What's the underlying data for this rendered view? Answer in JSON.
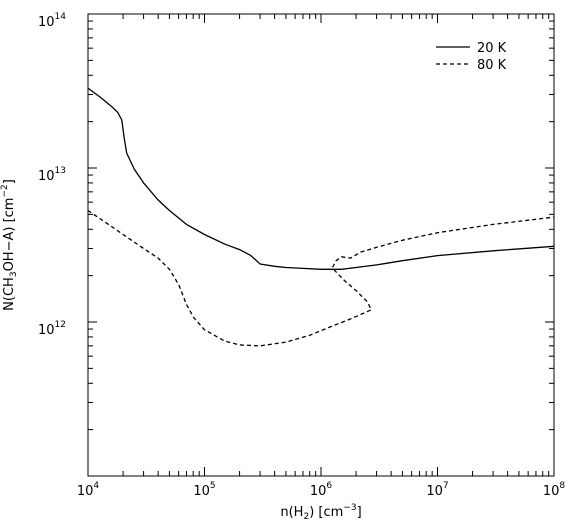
{
  "chart_data": {
    "type": "line",
    "title": "",
    "xlabel": "n(H2) [cm-3]",
    "ylabel": "N(CH3OH-A) [cm-2]",
    "xscale": "log",
    "yscale": "log",
    "xlim": [
      10000,
      100000000
    ],
    "ylim": [
      100000000000,
      100000000000000
    ],
    "legend_position": "top-right",
    "x_ticks": [
      {
        "value": 10000,
        "base": "10",
        "exp": "4"
      },
      {
        "value": 100000,
        "base": "10",
        "exp": "5"
      },
      {
        "value": 1000000,
        "base": "10",
        "exp": "6"
      },
      {
        "value": 10000000,
        "base": "10",
        "exp": "7"
      },
      {
        "value": 100000000,
        "base": "10",
        "exp": "8"
      }
    ],
    "y_ticks": [
      {
        "value": 1000000000000,
        "base": "10",
        "exp": "12"
      },
      {
        "value": 10000000000000,
        "base": "10",
        "exp": "13"
      },
      {
        "value": 100000000000000,
        "base": "10",
        "exp": "14"
      }
    ],
    "series": [
      {
        "name": "20 K",
        "style": "solid",
        "color": "#000000",
        "points": [
          [
            10000,
            33000000000000.0
          ],
          [
            13000,
            28500000000000.0
          ],
          [
            16000,
            25000000000000.0
          ],
          [
            18000,
            23000000000000.0
          ],
          [
            19500,
            20500000000000.0
          ],
          [
            20500,
            15500000000000.0
          ],
          [
            21500,
            12500000000000.0
          ],
          [
            25000,
            9800000000000.0
          ],
          [
            30000,
            8000000000000.0
          ],
          [
            40000,
            6200000000000.0
          ],
          [
            50000,
            5300000000000.0
          ],
          [
            70000,
            4300000000000.0
          ],
          [
            100000,
            3700000000000.0
          ],
          [
            150000,
            3200000000000.0
          ],
          [
            200000,
            2950000000000.0
          ],
          [
            250000,
            2700000000000.0
          ],
          [
            300000,
            2380000000000.0
          ],
          [
            400000,
            2300000000000.0
          ],
          [
            500000,
            2260000000000.0
          ],
          [
            700000,
            2230000000000.0
          ],
          [
            1000000,
            2200000000000.0
          ],
          [
            1500000,
            2200000000000.0
          ],
          [
            2000000,
            2260000000000.0
          ],
          [
            3000000,
            2350000000000.0
          ],
          [
            5000000,
            2500000000000.0
          ],
          [
            10000000,
            2700000000000.0
          ],
          [
            30000000,
            2900000000000.0
          ],
          [
            100000000,
            3100000000000.0
          ]
        ]
      },
      {
        "name": "80 K",
        "style": "dashed",
        "color": "#000000",
        "points": [
          [
            10000,
            5300000000000.0
          ],
          [
            15000,
            4300000000000.0
          ],
          [
            20000,
            3700000000000.0
          ],
          [
            30000,
            3000000000000.0
          ],
          [
            40000,
            2600000000000.0
          ],
          [
            50000,
            2200000000000.0
          ],
          [
            60000,
            1750000000000.0
          ],
          [
            70000,
            1300000000000.0
          ],
          [
            80000,
            1080000000000.0
          ],
          [
            100000,
            890000000000.0
          ],
          [
            150000,
            750000000000.0
          ],
          [
            200000,
            710000000000.0
          ],
          [
            300000,
            700000000000.0
          ],
          [
            500000,
            740000000000.0
          ],
          [
            800000,
            820000000000.0
          ],
          [
            1200000,
            930000000000.0
          ],
          [
            1700000,
            1030000000000.0
          ],
          [
            2200000,
            1120000000000.0
          ],
          [
            2700000,
            1200000000000.0
          ],
          [
            2500000,
            1350000000000.0
          ],
          [
            2000000,
            1600000000000.0
          ],
          [
            1600000,
            1850000000000.0
          ],
          [
            1400000,
            2050000000000.0
          ],
          [
            1250000,
            2250000000000.0
          ],
          [
            1350000,
            2500000000000.0
          ],
          [
            1500000,
            2650000000000.0
          ],
          [
            1800000,
            2600000000000.0
          ],
          [
            2200000,
            2850000000000.0
          ],
          [
            3000000,
            3050000000000.0
          ],
          [
            5000000,
            3400000000000.0
          ],
          [
            10000000,
            3800000000000.0
          ],
          [
            30000000,
            4300000000000.0
          ],
          [
            100000000,
            4800000000000.0
          ]
        ]
      }
    ]
  }
}
